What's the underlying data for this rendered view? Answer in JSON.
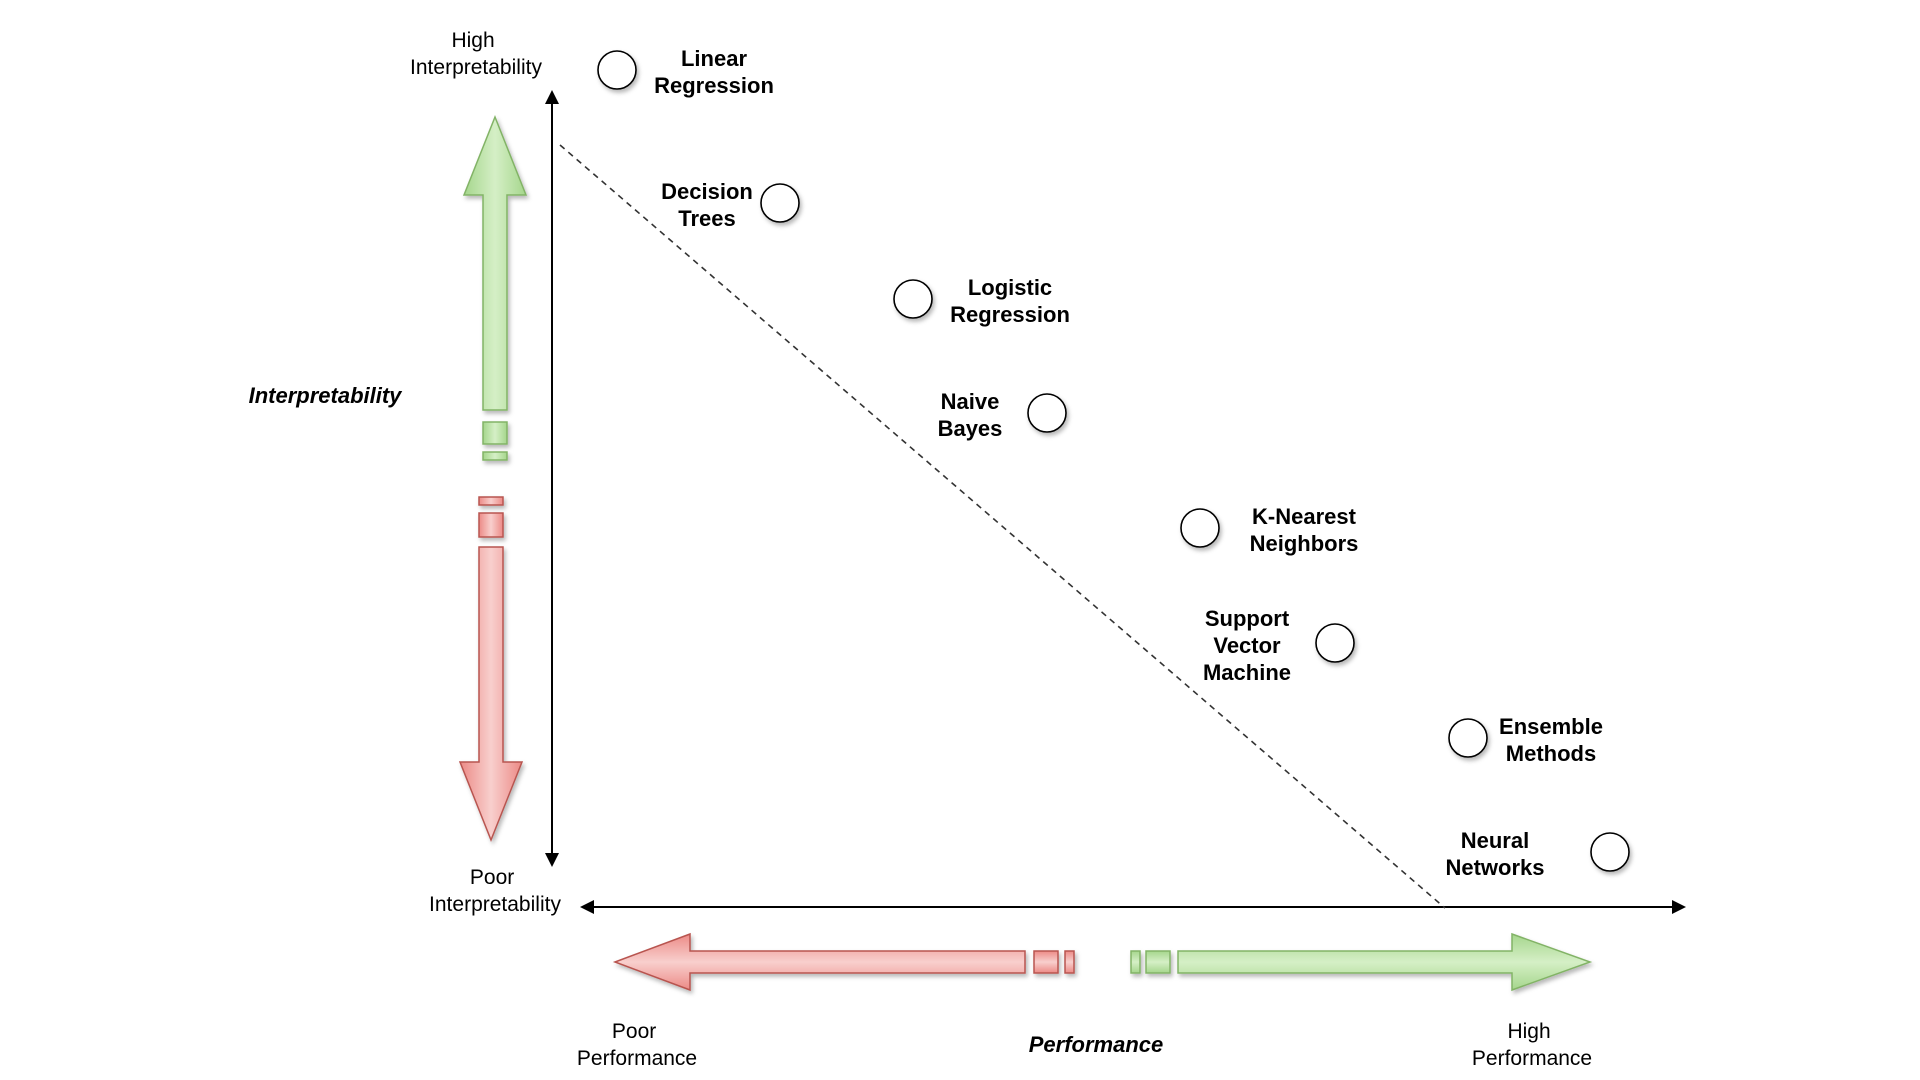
{
  "axes": {
    "y_top_label": [
      "High",
      "Interpretability"
    ],
    "y_bottom_label": [
      "Poor",
      "Interpretability"
    ],
    "y_title": "Interpretability",
    "x_left_label": [
      "Poor",
      "Performance"
    ],
    "x_right_label": [
      "High",
      "Performance"
    ],
    "x_title": "Performance"
  },
  "models": [
    {
      "name": "linear-regression",
      "lines": [
        "Linear",
        "Regression"
      ]
    },
    {
      "name": "decision-trees",
      "lines": [
        "Decision",
        "Trees"
      ]
    },
    {
      "name": "logistic-regression",
      "lines": [
        "Logistic",
        "Regression"
      ]
    },
    {
      "name": "naive-bayes",
      "lines": [
        "Naive",
        "Bayes"
      ]
    },
    {
      "name": "k-nearest-neighbors",
      "lines": [
        "K-Nearest",
        "Neighbors"
      ]
    },
    {
      "name": "support-vector-machine",
      "lines": [
        "Support",
        "Vector",
        "Machine"
      ]
    },
    {
      "name": "ensemble-methods",
      "lines": [
        "Ensemble",
        "Methods"
      ]
    },
    {
      "name": "neural-networks",
      "lines": [
        "Neural",
        "Networks"
      ]
    }
  ],
  "colors": {
    "good_fill": "#b9e0a5",
    "good_stroke": "#82b366",
    "bad_fill": "#f19c99",
    "bad_stroke": "#b85450",
    "line": "#000000"
  }
}
